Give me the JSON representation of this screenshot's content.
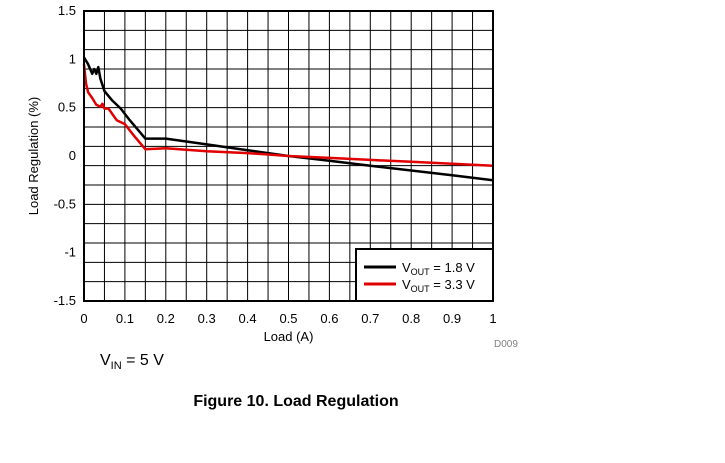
{
  "chart_data": {
    "type": "line",
    "xlabel": "Load (A)",
    "ylabel": "Load Regulation (%)",
    "xlim": [
      0,
      1
    ],
    "ylim": [
      -1.5,
      1.5
    ],
    "x_ticks": [
      "0",
      "0.1",
      "0.2",
      "0.3",
      "0.4",
      "0.5",
      "0.6",
      "0.7",
      "0.8",
      "0.9",
      "1"
    ],
    "y_ticks": [
      "1.5",
      "1",
      "0.5",
      "0",
      "-0.5",
      "-1",
      "-1.5"
    ],
    "grid": true,
    "legend_position": "bottom-right",
    "series": [
      {
        "name": "1.8 V",
        "label_prefix": "V",
        "label_sub": "OUT",
        "label_suffix": " = 1.8 V",
        "color": "#000000",
        "points": [
          [
            0,
            1.02
          ],
          [
            0.01,
            0.95
          ],
          [
            0.02,
            0.85
          ],
          [
            0.025,
            0.9
          ],
          [
            0.03,
            0.85
          ],
          [
            0.035,
            0.92
          ],
          [
            0.04,
            0.8
          ],
          [
            0.05,
            0.67
          ],
          [
            0.07,
            0.57
          ],
          [
            0.09,
            0.49
          ],
          [
            0.11,
            0.38
          ],
          [
            0.13,
            0.28
          ],
          [
            0.15,
            0.18
          ],
          [
            0.2,
            0.18
          ],
          [
            0.3,
            0.12
          ],
          [
            0.4,
            0.06
          ],
          [
            0.5,
            0.0
          ],
          [
            0.6,
            -0.05
          ],
          [
            0.7,
            -0.1
          ],
          [
            0.8,
            -0.15
          ],
          [
            0.9,
            -0.2
          ],
          [
            1.0,
            -0.25
          ]
        ]
      },
      {
        "name": "3.3 V",
        "label_prefix": "V",
        "label_sub": "OUT",
        "label_suffix": " = 3.3 V",
        "color": "#e00000",
        "points": [
          [
            0,
            0.95
          ],
          [
            0.005,
            0.75
          ],
          [
            0.01,
            0.66
          ],
          [
            0.02,
            0.6
          ],
          [
            0.03,
            0.53
          ],
          [
            0.04,
            0.51
          ],
          [
            0.045,
            0.54
          ],
          [
            0.05,
            0.49
          ],
          [
            0.06,
            0.49
          ],
          [
            0.08,
            0.37
          ],
          [
            0.1,
            0.33
          ],
          [
            0.12,
            0.22
          ],
          [
            0.15,
            0.07
          ],
          [
            0.2,
            0.08
          ],
          [
            0.3,
            0.05
          ],
          [
            0.4,
            0.03
          ],
          [
            0.5,
            0.0
          ],
          [
            0.6,
            -0.02
          ],
          [
            0.7,
            -0.04
          ],
          [
            0.8,
            -0.06
          ],
          [
            0.9,
            -0.08
          ],
          [
            1.0,
            -0.1
          ]
        ]
      }
    ]
  },
  "doc_id": "D009",
  "conditions": {
    "vin_prefix": "V",
    "vin_sub": "IN",
    "vin_suffix": " = 5 V"
  },
  "figure_title": "Figure 10. Load Regulation"
}
